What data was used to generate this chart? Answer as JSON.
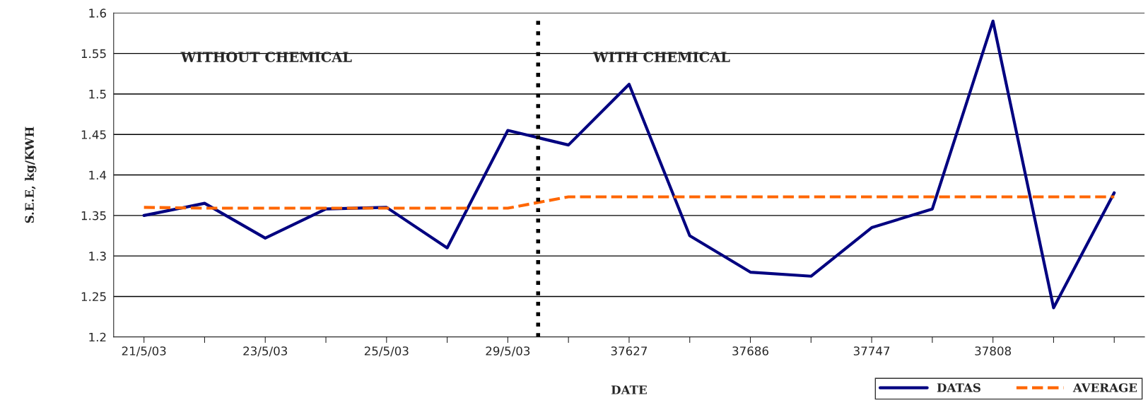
{
  "chart_data": {
    "type": "line",
    "xlabel": "DATE",
    "ylabel": "S.E.E, kg/KWH",
    "categories": [
      "21/5/03",
      null,
      "23/5/03",
      null,
      "25/5/03",
      null,
      "29/5/03",
      null,
      "37627",
      null,
      "37686",
      null,
      "37747",
      null,
      "37808",
      null,
      null
    ],
    "series": [
      {
        "name": "DATAS",
        "color": "#000080",
        "line_style": "solid",
        "values": [
          1.35,
          1.365,
          1.322,
          1.358,
          1.36,
          1.31,
          1.455,
          1.437,
          1.512,
          1.325,
          1.28,
          1.275,
          1.335,
          1.358,
          1.59,
          1.236,
          1.378
        ]
      },
      {
        "name": "AVERAGE",
        "color": "#ff6600",
        "line_style": "dashed",
        "values": [
          1.36,
          1.359,
          1.359,
          1.359,
          1.359,
          1.359,
          1.359,
          1.373,
          1.373,
          1.373,
          1.373,
          1.373,
          1.373,
          1.373,
          1.373,
          1.373,
          1.373
        ]
      }
    ],
    "ylim": [
      1.2,
      1.6
    ],
    "yticks": [
      1.2,
      1.25,
      1.3,
      1.35,
      1.4,
      1.45,
      1.5,
      1.55,
      1.6
    ],
    "grid": "y",
    "legend": "bottom right",
    "annotations": [
      "WITHOUT CHEMICAL",
      "WITH CHEMICAL"
    ]
  }
}
